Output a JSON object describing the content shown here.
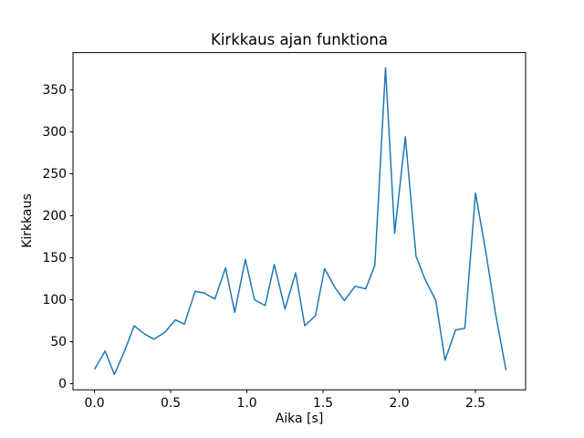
{
  "figure": {
    "title": "Kirkkaus ajan funktiona",
    "xlabel": "Aika [s]",
    "ylabel": "Kirkkaus"
  },
  "chart_data": {
    "type": "line",
    "title": "Kirkkaus ajan funktiona",
    "xlabel": "Aika [s]",
    "ylabel": "Kirkkaus",
    "grid": false,
    "legend": "none",
    "line_color": "#1f77b4",
    "line_width": 1.5,
    "spine_color": "#000000",
    "background_color": "#ffffff",
    "xlim": [
      -0.141,
      2.829
    ],
    "ylim": [
      -7.25,
      394.25
    ],
    "xticks": {
      "values": [
        0.0,
        0.5,
        1.0,
        1.5,
        2.0,
        2.5
      ],
      "labels": [
        "0.0",
        "0.5",
        "1.0",
        "1.5",
        "2.0",
        "2.5"
      ]
    },
    "yticks": {
      "values": [
        0,
        50,
        100,
        150,
        200,
        250,
        300,
        350
      ],
      "labels": [
        "0",
        "50",
        "100",
        "150",
        "200",
        "250",
        "300",
        "350"
      ]
    },
    "series": [
      {
        "name": "kirkkaus",
        "x": [
          0.0,
          0.07,
          0.13,
          0.2,
          0.26,
          0.33,
          0.39,
          0.46,
          0.53,
          0.59,
          0.66,
          0.72,
          0.79,
          0.86,
          0.92,
          0.99,
          1.05,
          1.12,
          1.18,
          1.25,
          1.32,
          1.38,
          1.45,
          1.51,
          1.58,
          1.64,
          1.71,
          1.78,
          1.84,
          1.91,
          1.97,
          2.04,
          2.11,
          2.17,
          2.24,
          2.3,
          2.37,
          2.43,
          2.5,
          2.57,
          2.63,
          2.7
        ],
        "y": [
          17,
          39,
          11,
          40,
          69,
          59,
          53,
          61,
          76,
          71,
          110,
          108,
          101,
          138,
          85,
          148,
          100,
          93,
          142,
          89,
          132,
          69,
          81,
          137,
          114,
          99,
          116,
          113,
          141,
          376,
          179,
          294,
          152,
          124,
          99,
          28,
          64,
          66,
          227,
          155,
          85,
          16
        ]
      }
    ]
  }
}
